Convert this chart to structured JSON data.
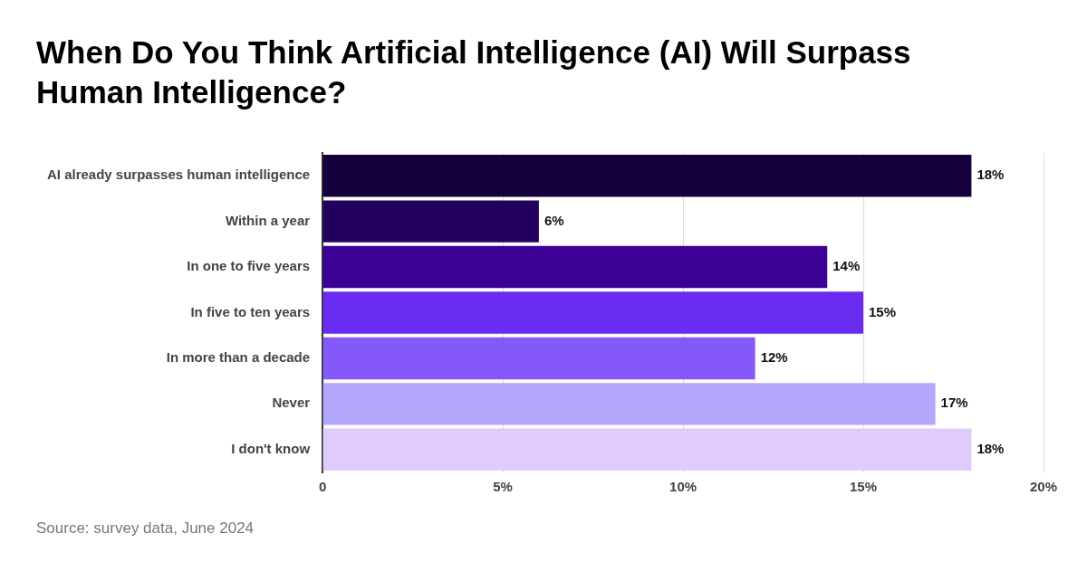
{
  "chart_data": {
    "type": "bar",
    "orientation": "horizontal",
    "title": "When Do You Think Artificial Intelligence (AI) Will Surpass Human Intelligence?",
    "categories": [
      "AI already surpasses human intelligence",
      "Within a year",
      "In one to five years",
      "In five to ten years",
      "In more than a decade",
      "Never",
      "I don't know"
    ],
    "values": [
      18,
      6,
      14,
      15,
      12,
      17,
      18
    ],
    "colors": [
      "#14003a",
      "#22005e",
      "#3b0096",
      "#6a2cf0",
      "#8558fa",
      "#b3a6fc",
      "#dfcbfc"
    ],
    "value_labels": [
      "18%",
      "6%",
      "14%",
      "15%",
      "12%",
      "17%",
      "18%"
    ],
    "xlim": [
      0,
      20
    ],
    "xticks": [
      0,
      {
        "value": 5,
        "label": "5%"
      },
      {
        "value": 10,
        "label": "10%"
      },
      {
        "value": 15,
        "label": "15%"
      },
      {
        "value": 20,
        "label": "20%"
      }
    ],
    "grid": "x",
    "legend": false,
    "annotations": [
      "Source: survey data, June 2024"
    ]
  }
}
